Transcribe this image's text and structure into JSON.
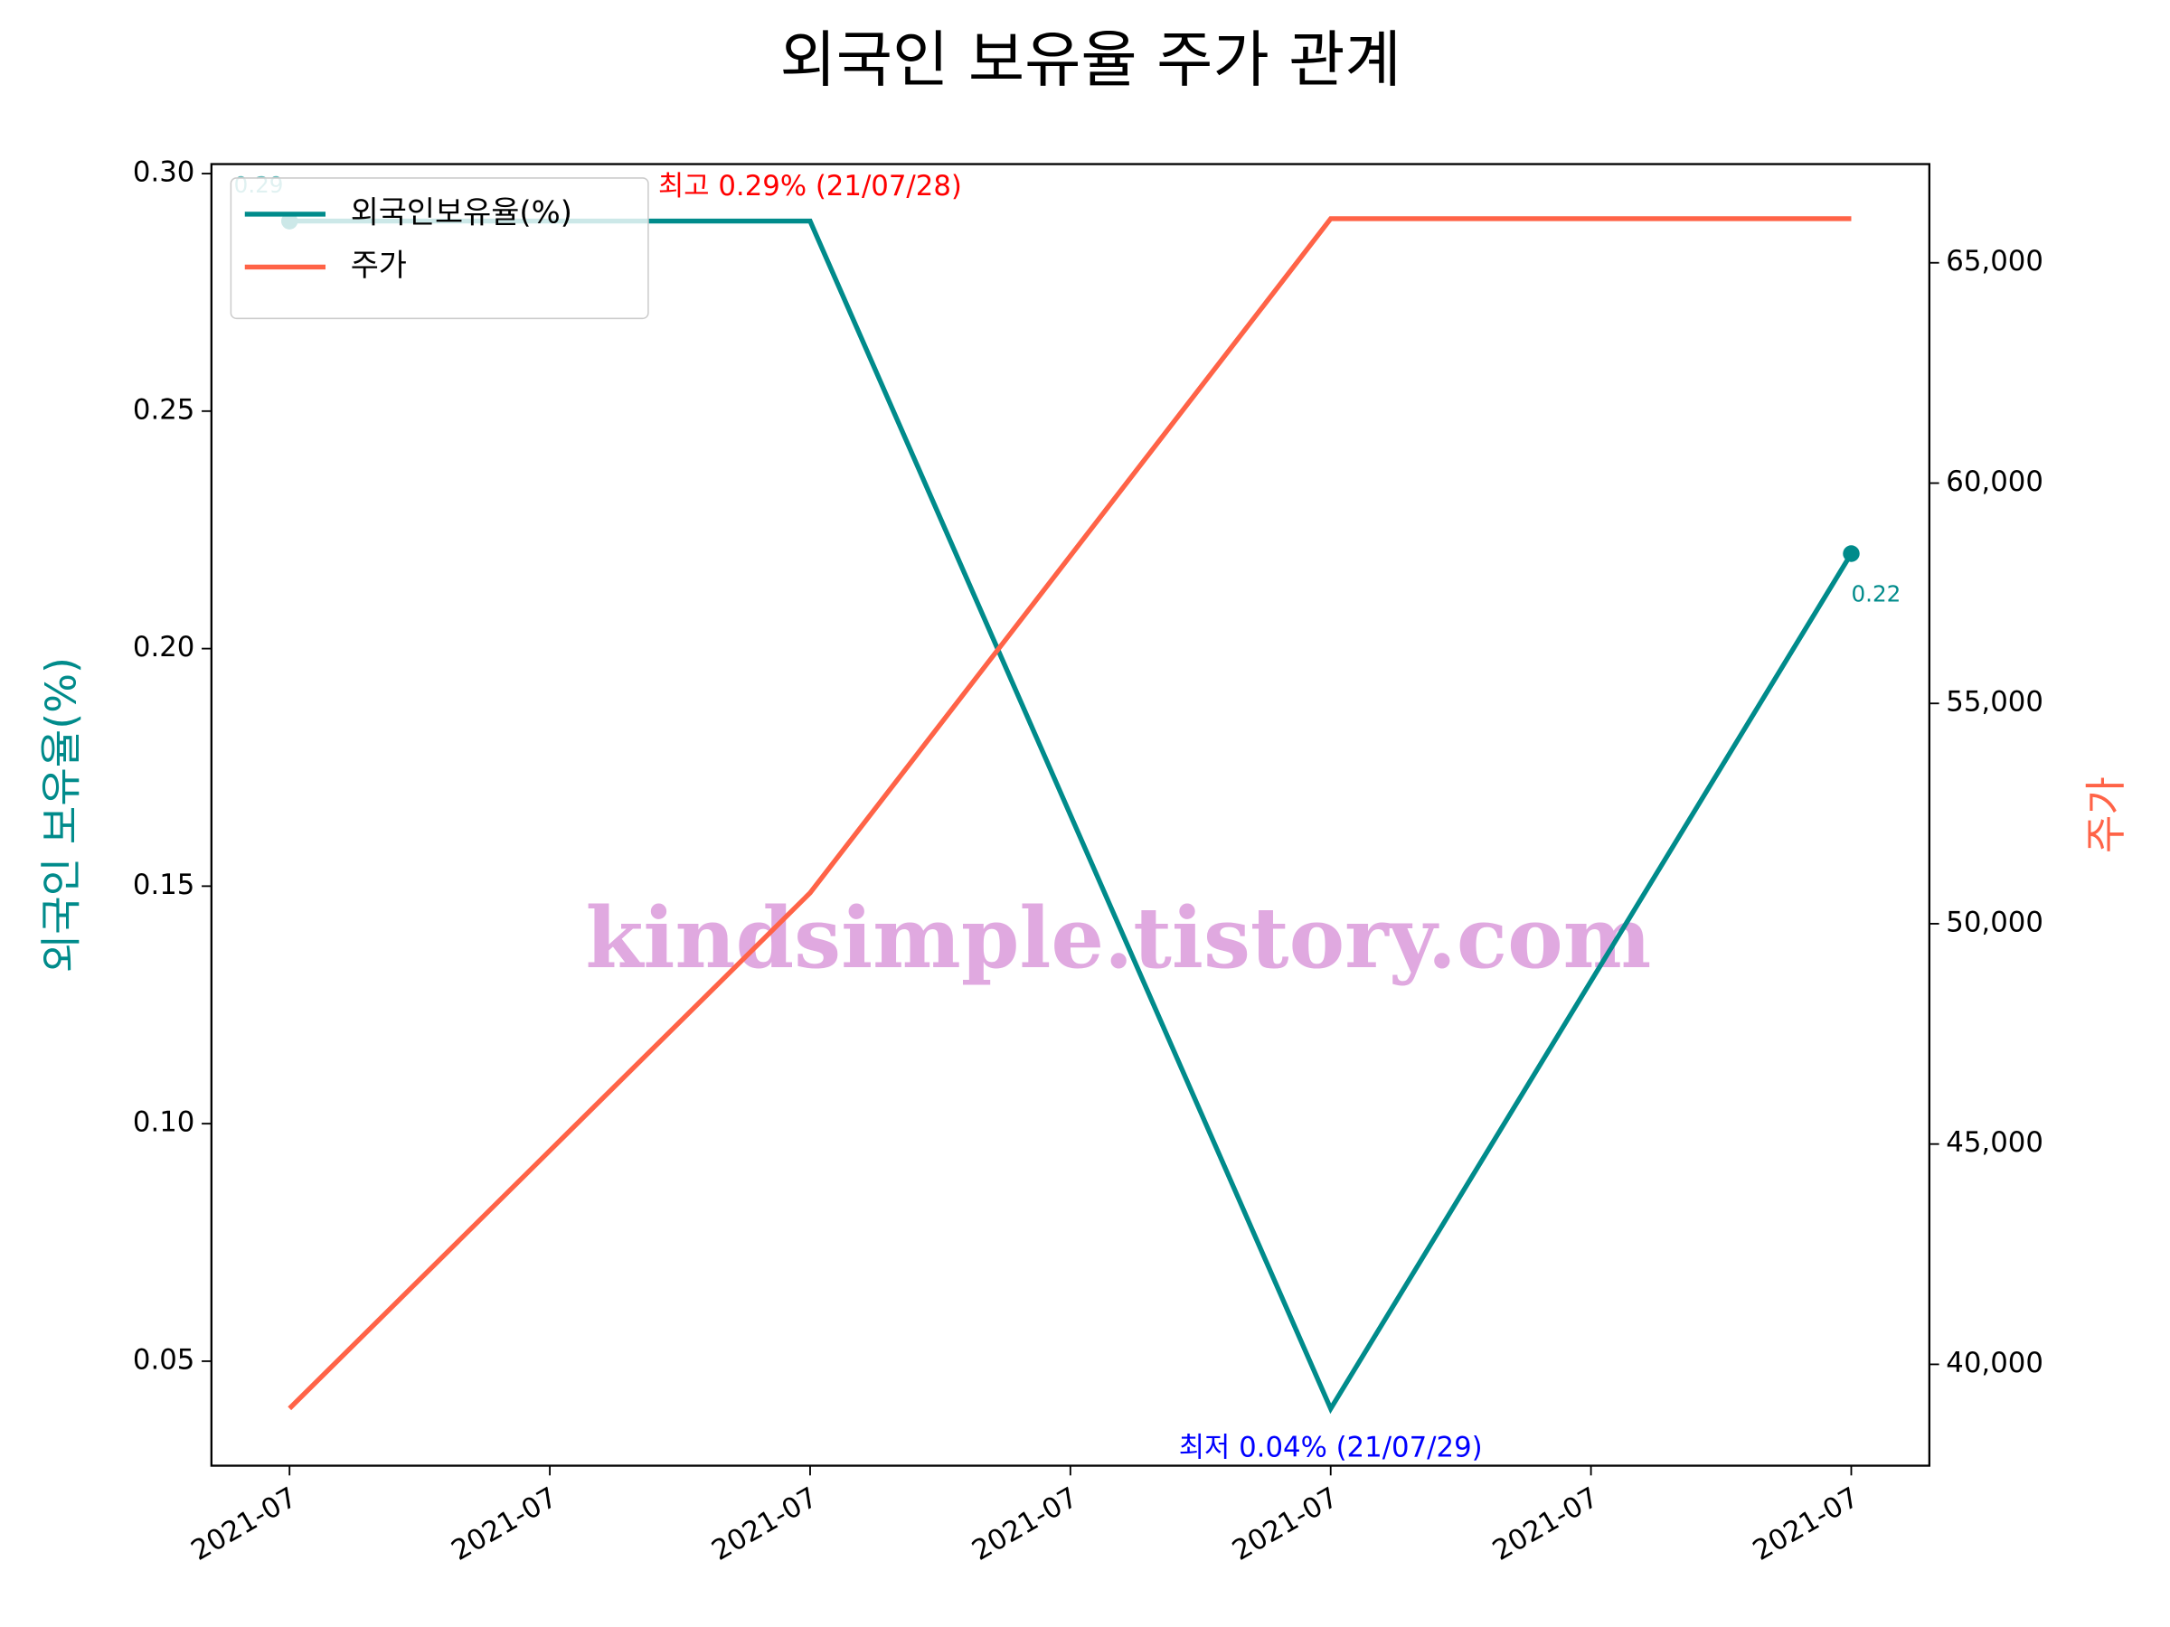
{
  "chart_data": {
    "type": "line",
    "title": "외국인 보유율 주가 관계",
    "ylabel": "외국인 보유율(%)",
    "y2label": "주가",
    "x": [
      27,
      28,
      29,
      30
    ],
    "xlim": [
      26.85,
      30.15
    ],
    "xticks": [
      {
        "value": 27,
        "label": "2021-07"
      },
      {
        "value": 27.5,
        "label": "2021-07"
      },
      {
        "value": 28,
        "label": "2021-07"
      },
      {
        "value": 28.5,
        "label": "2021-07"
      },
      {
        "value": 29,
        "label": "2021-07"
      },
      {
        "value": 29.5,
        "label": "2021-07"
      },
      {
        "value": 30,
        "label": "2021-07"
      }
    ],
    "ylim": [
      0.028,
      0.302
    ],
    "yticks": [
      {
        "value": 0.05,
        "label": "0.05"
      },
      {
        "value": 0.1,
        "label": "0.10"
      },
      {
        "value": 0.15,
        "label": "0.15"
      },
      {
        "value": 0.2,
        "label": "0.20"
      },
      {
        "value": 0.25,
        "label": "0.25"
      },
      {
        "value": 0.3,
        "label": "0.30"
      }
    ],
    "y2lim": [
      37700,
      67240
    ],
    "y2ticks": [
      {
        "value": 40000,
        "label": "40,000"
      },
      {
        "value": 45000,
        "label": "45,000"
      },
      {
        "value": 50000,
        "label": "50,000"
      },
      {
        "value": 55000,
        "label": "55,000"
      },
      {
        "value": 60000,
        "label": "60,000"
      },
      {
        "value": 65000,
        "label": "65,000"
      }
    ],
    "series": [
      {
        "name": "외국인보유율(%)",
        "color": "#008b8b",
        "values": [
          0.29,
          0.29,
          0.04,
          0.22
        ],
        "value_labels": [
          "0.29",
          null,
          null,
          "0.22"
        ]
      },
      {
        "name": "주가",
        "color": "#ff6347",
        "axis": "y2",
        "values": [
          39000,
          50700,
          66000,
          66000
        ]
      }
    ],
    "annotations": [
      {
        "text": "최고 0.29% (21/07/28)",
        "x": 28,
        "y": 0.29,
        "color": "#ff0000"
      },
      {
        "text": "최저 0.04% (21/07/29)",
        "x": 29,
        "y": 0.04,
        "color": "#0000ff"
      }
    ],
    "watermark": "kindsimple.tistory.com",
    "legend": "upper left"
  }
}
